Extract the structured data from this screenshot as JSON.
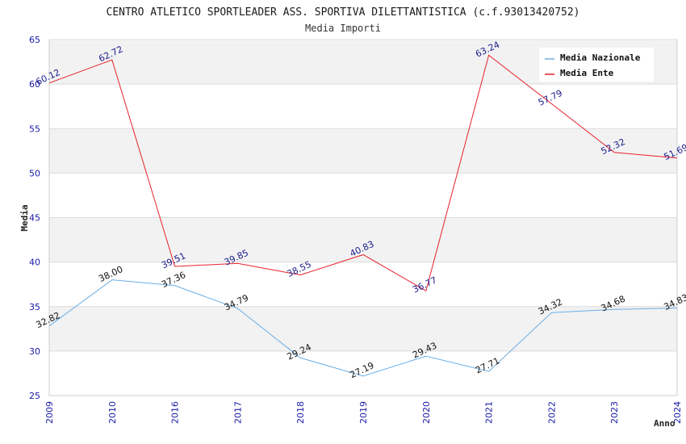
{
  "chart_data": {
    "type": "line",
    "title": "CENTRO ATLETICO SPORTLEADER ASS. SPORTIVA DILETTANTISTICA (c.f.93013420752)",
    "subtitle": "Media Importi",
    "xlabel": "Anno",
    "ylabel": "Media",
    "ylim": [
      25,
      65
    ],
    "yticks": [
      25,
      30,
      35,
      40,
      45,
      50,
      55,
      60,
      65
    ],
    "categories": [
      "2009",
      "2010",
      "2016",
      "2017",
      "2018",
      "2019",
      "2020",
      "2021",
      "2022",
      "2023",
      "2024"
    ],
    "grid": true,
    "legend_position": "top-right",
    "series": [
      {
        "name": "Media Nazionale",
        "color": "#6aaee6",
        "label_color": "#111111",
        "values": [
          32.82,
          38.0,
          37.36,
          34.79,
          29.24,
          27.19,
          29.43,
          27.71,
          34.32,
          34.68,
          34.83
        ],
        "labels": [
          "32.82",
          "38.00",
          "37.36",
          "34.79",
          "29.24",
          "27.19",
          "29.43",
          "27.71",
          "34.32",
          "34.68",
          "34.83"
        ]
      },
      {
        "name": "Media Ente",
        "color": "#e8202a",
        "label_color": "#1a1a8c",
        "values": [
          60.12,
          62.72,
          39.51,
          39.85,
          38.55,
          40.83,
          36.77,
          63.24,
          57.79,
          52.32,
          51.69
        ],
        "labels": [
          "60.12",
          "62.72",
          "39.51",
          "39.85",
          "38.55",
          "40.83",
          "36.77",
          "63.24",
          "57.79",
          "52.32",
          "51.69"
        ]
      }
    ]
  }
}
